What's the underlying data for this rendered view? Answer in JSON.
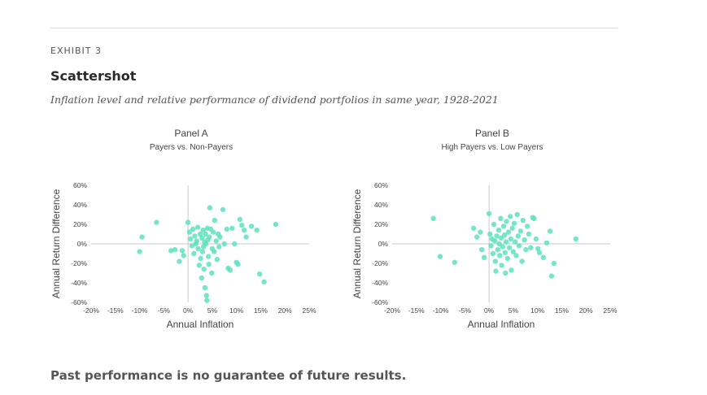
{
  "header": {
    "exhibit": "EXHIBIT 3",
    "title": "Scattershot",
    "subtitle": "Inflation level and relative performance of dividend portfolios in same year, 1928-2021"
  },
  "footer": {
    "note": "Past performance is no guarantee of future results."
  },
  "colors": {
    "point": "#5fe0c0",
    "axis": "#c8c8c8",
    "text": "#444444"
  },
  "chart_data": [
    {
      "type": "scatter",
      "title": "Panel A",
      "subtitle": "Payers vs. Non-Payers",
      "xlabel": "Annual Inflation",
      "ylabel": "Annual Return Difference",
      "xlim": [
        -20,
        25
      ],
      "ylim": [
        -60,
        60
      ],
      "xticks": [
        "-20%",
        "-15%",
        "-10%",
        "-5%",
        "0%",
        "5%",
        "10%",
        "15%",
        "20%",
        "25%"
      ],
      "yticks": [
        "60%",
        "40%",
        "20%",
        "0%",
        "-20%",
        "-40%",
        "-60%"
      ],
      "xtick_values": [
        -20,
        -15,
        -10,
        -5,
        0,
        5,
        10,
        15,
        20,
        25
      ],
      "ytick_values": [
        60,
        40,
        20,
        0,
        -20,
        -40,
        -60
      ],
      "points": [
        [
          -10,
          -8
        ],
        [
          -9.5,
          7
        ],
        [
          -6.5,
          22
        ],
        [
          -3.5,
          -7
        ],
        [
          -2.7,
          -6
        ],
        [
          -1.8,
          -18
        ],
        [
          -1.2,
          -7
        ],
        [
          -0.9,
          -12
        ],
        [
          0,
          22
        ],
        [
          0.3,
          12
        ],
        [
          0.5,
          5
        ],
        [
          0.8,
          -2
        ],
        [
          1,
          15
        ],
        [
          1.2,
          -10
        ],
        [
          1.4,
          8
        ],
        [
          1.6,
          0
        ],
        [
          1.8,
          3
        ],
        [
          2,
          17
        ],
        [
          2.1,
          -5
        ],
        [
          2.3,
          -22
        ],
        [
          2.5,
          10
        ],
        [
          2.6,
          -15
        ],
        [
          2.8,
          -35
        ],
        [
          2.9,
          6
        ],
        [
          3,
          -8
        ],
        [
          3.1,
          14
        ],
        [
          3.2,
          -3
        ],
        [
          3.3,
          -26
        ],
        [
          3.4,
          2
        ],
        [
          3.5,
          -45
        ],
        [
          3.6,
          10
        ],
        [
          3.7,
          0
        ],
        [
          3.8,
          -53
        ],
        [
          3.9,
          -58
        ],
        [
          4,
          16
        ],
        [
          4.1,
          4
        ],
        [
          4.2,
          -13
        ],
        [
          4.3,
          -21
        ],
        [
          4.4,
          7
        ],
        [
          4.5,
          37
        ],
        [
          4.7,
          15
        ],
        [
          4.9,
          -30
        ],
        [
          5,
          -5
        ],
        [
          5.2,
          12
        ],
        [
          5.4,
          -8
        ],
        [
          5.5,
          24
        ],
        [
          5.8,
          3
        ],
        [
          6,
          -16
        ],
        [
          6.2,
          10
        ],
        [
          6.4,
          -3
        ],
        [
          6.6,
          7
        ],
        [
          7.2,
          35
        ],
        [
          7.5,
          0
        ],
        [
          8,
          15
        ],
        [
          8.3,
          -25
        ],
        [
          8.7,
          -27
        ],
        [
          9.1,
          16
        ],
        [
          9.6,
          0
        ],
        [
          10,
          -19
        ],
        [
          10.3,
          -21
        ],
        [
          10.7,
          25
        ],
        [
          11.1,
          19
        ],
        [
          11.6,
          14
        ],
        [
          12,
          7
        ],
        [
          13.1,
          18
        ],
        [
          14.2,
          14
        ],
        [
          14.8,
          -31
        ],
        [
          15.7,
          -39
        ],
        [
          18.1,
          20
        ]
      ]
    },
    {
      "type": "scatter",
      "title": "Panel B",
      "subtitle": "High Payers vs. Low Payers",
      "xlabel": "Annual Inflation",
      "ylabel": "Annual Return Difference",
      "xlim": [
        -20,
        25
      ],
      "ylim": [
        -60,
        60
      ],
      "xticks": [
        "-20%",
        "-15%",
        "-10%",
        "-5%",
        "0%",
        "5%",
        "10%",
        "15%",
        "20%",
        "25%"
      ],
      "yticks": [
        "60%",
        "40%",
        "20%",
        "0%",
        "-20%",
        "-40%",
        "-60%"
      ],
      "xtick_values": [
        -20,
        -15,
        -10,
        -5,
        0,
        5,
        10,
        15,
        20,
        25
      ],
      "ytick_values": [
        60,
        40,
        20,
        0,
        -20,
        -40,
        -60
      ],
      "points": [
        [
          -11.5,
          26
        ],
        [
          -10.1,
          -13
        ],
        [
          -7.1,
          -19
        ],
        [
          -3.2,
          16
        ],
        [
          -2.5,
          7
        ],
        [
          -1.8,
          12
        ],
        [
          -1.5,
          -6
        ],
        [
          -1,
          -14
        ],
        [
          0,
          31
        ],
        [
          0.2,
          10
        ],
        [
          0.4,
          -2
        ],
        [
          0.6,
          5
        ],
        [
          0.8,
          -10
        ],
        [
          1,
          20
        ],
        [
          1.2,
          3
        ],
        [
          1.3,
          -18
        ],
        [
          1.4,
          -28
        ],
        [
          1.6,
          8
        ],
        [
          1.8,
          -6
        ],
        [
          2,
          14
        ],
        [
          2.1,
          0
        ],
        [
          2.2,
          -12
        ],
        [
          2.4,
          26
        ],
        [
          2.5,
          6
        ],
        [
          2.6,
          -22
        ],
        [
          2.8,
          -3
        ],
        [
          3,
          18
        ],
        [
          3.2,
          9
        ],
        [
          3.3,
          -9
        ],
        [
          3.4,
          -30
        ],
        [
          3.5,
          2
        ],
        [
          3.6,
          23
        ],
        [
          3.8,
          -15
        ],
        [
          4,
          12
        ],
        [
          4.2,
          -4
        ],
        [
          4.4,
          28
        ],
        [
          4.5,
          5
        ],
        [
          4.6,
          -27
        ],
        [
          4.8,
          16
        ],
        [
          5,
          -8
        ],
        [
          5.2,
          21
        ],
        [
          5.4,
          2
        ],
        [
          5.6,
          -12
        ],
        [
          5.8,
          30
        ],
        [
          6,
          8
        ],
        [
          6.2,
          -2
        ],
        [
          6.5,
          13
        ],
        [
          6.8,
          -18
        ],
        [
          7,
          24
        ],
        [
          7.3,
          4
        ],
        [
          7.6,
          -6
        ],
        [
          7.9,
          18
        ],
        [
          8.2,
          10
        ],
        [
          8.6,
          -4
        ],
        [
          9,
          27
        ],
        [
          9.3,
          26
        ],
        [
          9.7,
          5
        ],
        [
          10.1,
          -5
        ],
        [
          10.4,
          -9
        ],
        [
          11.2,
          -14
        ],
        [
          11.9,
          1
        ],
        [
          12.6,
          13
        ],
        [
          12.9,
          -33
        ],
        [
          13.4,
          -20
        ],
        [
          17.9,
          5
        ]
      ]
    }
  ]
}
